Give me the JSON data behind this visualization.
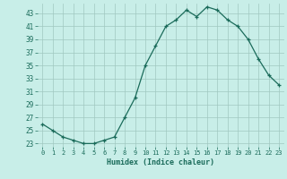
{
  "x": [
    0,
    1,
    2,
    3,
    4,
    5,
    6,
    7,
    8,
    9,
    10,
    11,
    12,
    13,
    14,
    15,
    16,
    17,
    18,
    19,
    20,
    21,
    22,
    23
  ],
  "y": [
    26,
    25,
    24,
    23.5,
    23,
    23,
    23.5,
    24,
    27,
    30,
    35,
    38,
    41,
    42,
    43.5,
    42.5,
    44,
    43.5,
    42,
    41,
    39,
    36,
    33.5,
    32
  ],
  "xlabel": "Humidex (Indice chaleur)",
  "ylim": [
    22.5,
    44.5
  ],
  "xlim": [
    -0.5,
    23.5
  ],
  "yticks": [
    23,
    25,
    27,
    29,
    31,
    33,
    35,
    37,
    39,
    41,
    43
  ],
  "xticks": [
    0,
    1,
    2,
    3,
    4,
    5,
    6,
    7,
    8,
    9,
    10,
    11,
    12,
    13,
    14,
    15,
    16,
    17,
    18,
    19,
    20,
    21,
    22,
    23
  ],
  "line_color": "#1a6b5a",
  "marker": "+",
  "bg_color": "#c8eee8",
  "grid_color": "#a0c8c0",
  "font_color": "#1a6b5a",
  "font_family": "monospace",
  "tick_fontsize": 5.0,
  "xlabel_fontsize": 6.0
}
